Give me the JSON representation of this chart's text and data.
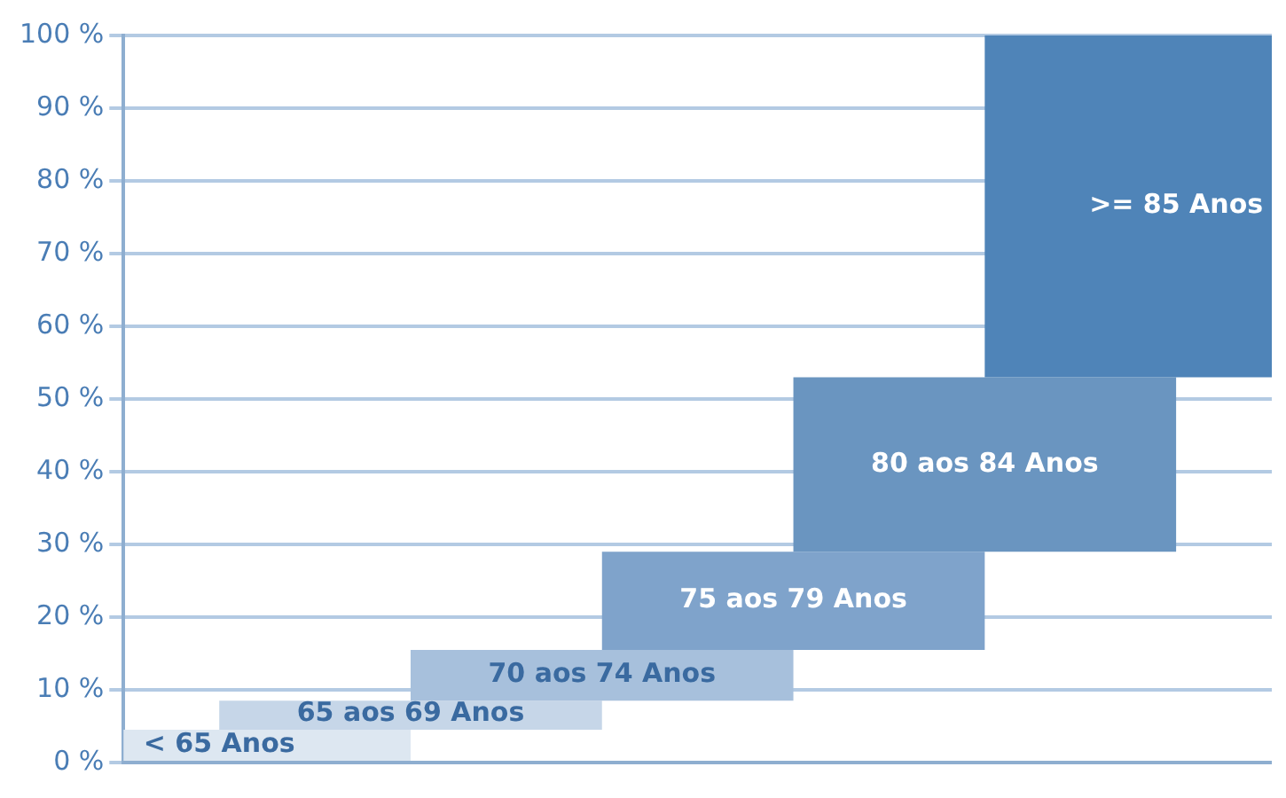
{
  "chart_data": {
    "type": "bar",
    "categories": [
      "< 65 Anos",
      "65 aos 69 Anos",
      "70 aos 74 Anos",
      "75 aos 79 Anos",
      "80 aos 84 Anos",
      ">= 85 Anos"
    ],
    "base": [
      0,
      4.5,
      8.5,
      15.5,
      29,
      53
    ],
    "values": [
      4.5,
      4,
      7,
      13.5,
      24,
      47
    ],
    "colors": [
      "#dde7f1",
      "#c6d6e8",
      "#a7c0dc",
      "#7fa3cb",
      "#6a95c0",
      "#4f84b8"
    ],
    "ylim": [
      0,
      100
    ],
    "yticks": [
      {
        "value": 0,
        "label": "0 %"
      },
      {
        "value": 10,
        "label": "10 %"
      },
      {
        "value": 20,
        "label": "20 %"
      },
      {
        "value": 30,
        "label": "30 %"
      },
      {
        "value": 40,
        "label": "40 %"
      },
      {
        "value": 50,
        "label": "50 %"
      },
      {
        "value": 60,
        "label": "60 %"
      },
      {
        "value": 70,
        "label": "70 %"
      },
      {
        "value": 80,
        "label": "80 %"
      },
      {
        "value": 90,
        "label": "90 %"
      },
      {
        "value": 100,
        "label": "100 %"
      }
    ],
    "grid": "y",
    "legend": false
  }
}
